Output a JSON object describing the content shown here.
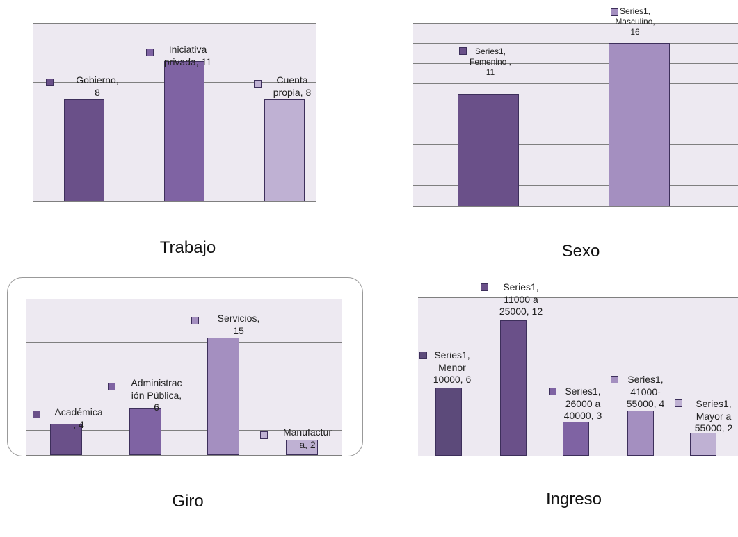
{
  "colors": {
    "plot_bg": "#ede9f1",
    "grid": "#7f7f7f",
    "shades": [
      "#6a5089",
      "#7f63a3",
      "#a48fc0",
      "#bfb1d3",
      "#5c4a7a"
    ]
  },
  "chart_data": [
    {
      "type": "bar",
      "title": "Trabajo",
      "categories": [
        "Gobierno",
        "Iniciativa privada",
        "Cuenta propia"
      ],
      "values": [
        8,
        11,
        8
      ],
      "labels": [
        "Gobierno,\n8",
        "Iniciativa\nprivada, 11",
        "Cuenta\npropia, 8"
      ],
      "ylim": [
        0,
        14
      ],
      "grid": true,
      "legend": "none"
    },
    {
      "type": "bar",
      "title": "Sexo",
      "categories": [
        "Femenino",
        "Masculino"
      ],
      "values": [
        11,
        16
      ],
      "labels": [
        "Series1,\nFemenino ,\n11",
        "Series1,\nMasculino,\n16"
      ],
      "ylim": [
        0,
        18
      ],
      "grid": true,
      "legend": "none"
    },
    {
      "type": "bar",
      "title": "Giro",
      "categories": [
        "Académica",
        "Administración Pública",
        "Servicios",
        "Manufactura"
      ],
      "values": [
        4,
        6,
        15,
        2
      ],
      "labels": [
        "Académica\n, 4",
        "Administrac\nión Pública,\n6",
        "Servicios,\n15",
        "Manufactur\na, 2"
      ],
      "ylim": [
        0,
        20
      ],
      "grid": true,
      "legend": "none"
    },
    {
      "type": "bar",
      "title": "Ingreso",
      "categories": [
        "Menor 10000",
        "11000 a 25000",
        "26000 a 40000",
        "41000-55000",
        "Mayor a 55000"
      ],
      "values": [
        6,
        12,
        3,
        4,
        2
      ],
      "labels": [
        "Series1,\nMenor\n10000, 6",
        "Series1,\n11000 a\n25000, 12",
        "Series1,\n26000 a\n40000, 3",
        "Series1,\n41000-\n55000, 4",
        "Series1,\nMayor a\n55000, 2"
      ],
      "ylim": [
        0,
        14
      ],
      "grid": true,
      "legend": "none"
    }
  ]
}
